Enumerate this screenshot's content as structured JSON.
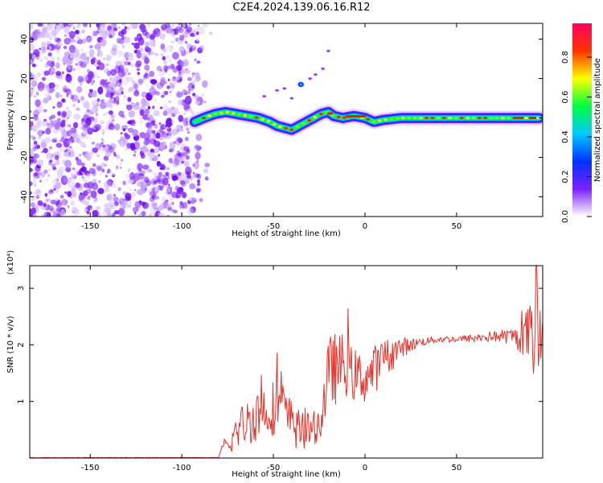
{
  "title": "C2E4.2024.139.06.16.R12",
  "colors": {
    "trace": "#e8302a",
    "scatter": "#7d1fff",
    "axis": "#000000"
  },
  "chart_data": [
    {
      "id": "spectrogram",
      "type": "heatmap",
      "title": "C2E4.2024.139.06.16.R12",
      "xlabel": "Height of straight line (km)",
      "ylabel": "Frequency (Hz)",
      "xlim": [
        -183,
        97
      ],
      "ylim": [
        -50,
        48
      ],
      "xticks": [
        -150,
        -100,
        -50,
        0,
        50
      ],
      "yticks": [
        -40,
        -20,
        0,
        20,
        40
      ],
      "colorbar": {
        "label": "Normalized spectral amplitude",
        "range": [
          0,
          0.97
        ],
        "ticks": [
          0.0,
          0.2,
          0.4,
          0.6,
          0.8
        ],
        "colormap": [
          "#ffffff",
          "#7d1fff",
          "#0033ff",
          "#00c8ff",
          "#00ff40",
          "#ffff00",
          "#ff3300",
          "#ff0060"
        ]
      },
      "noise_region_km": [
        -183,
        -88
      ],
      "carrier_trace": {
        "x": [
          -93,
          -88,
          -82,
          -76,
          -70,
          -64,
          -58,
          -52,
          -48,
          -44,
          -40,
          -36,
          -32,
          -28,
          -24,
          -20,
          -17,
          -12,
          -6,
          0,
          5,
          10,
          20,
          30,
          40,
          50,
          60,
          70,
          80,
          90,
          95
        ],
        "y": [
          -2,
          0,
          2,
          3,
          2,
          1,
          0,
          -2,
          -4,
          -5,
          -6,
          -4,
          -2,
          0,
          2,
          3,
          1,
          0,
          1,
          0,
          -2,
          -1,
          0,
          0,
          0,
          0,
          0,
          0,
          0,
          0,
          0
        ]
      },
      "sideband_points": {
        "x": [
          -55,
          -48,
          -44,
          -40,
          -35,
          -30,
          -27,
          -23,
          -20
        ],
        "y": [
          11,
          14,
          15,
          10,
          17,
          20,
          22,
          25,
          34
        ]
      }
    },
    {
      "id": "snr",
      "type": "line",
      "xlabel": "Height of straight line (km)",
      "ylabel": "SNR (10 * v/v)",
      "yscale_label": "(x10⁴)",
      "xlim": [
        -183,
        97
      ],
      "ylim": [
        0,
        3.4
      ],
      "xticks": [
        -150,
        -100,
        -50,
        0,
        50
      ],
      "yticks": [
        1,
        2,
        3
      ],
      "series": [
        {
          "name": "SNR",
          "x": [
            -183,
            -80,
            -77,
            -74,
            -70,
            -66,
            -62,
            -58,
            -54,
            -50,
            -46,
            -42,
            -38,
            -34,
            -30,
            -27,
            -24,
            -21,
            -18,
            -15,
            -12,
            -8,
            -4,
            0,
            5,
            10,
            15,
            20,
            25,
            30,
            40,
            50,
            60,
            70,
            80,
            85,
            90,
            93,
            95,
            97
          ],
          "envelope": [
            0.0,
            0.0,
            0.25,
            0.2,
            0.5,
            0.6,
            0.7,
            0.8,
            0.85,
            0.9,
            0.95,
            0.7,
            0.55,
            0.45,
            0.5,
            0.55,
            0.65,
            1.3,
            1.6,
            1.55,
            1.7,
            1.5,
            1.45,
            1.4,
            1.55,
            1.75,
            1.85,
            1.95,
            2.0,
            2.05,
            2.1,
            2.1,
            2.12,
            2.15,
            2.15,
            2.1,
            2.2,
            2.05,
            2.1,
            2.2
          ],
          "spread": [
            0.0,
            0.0,
            0.1,
            0.15,
            0.35,
            0.4,
            0.45,
            0.5,
            0.5,
            0.5,
            0.5,
            0.45,
            0.4,
            0.35,
            0.3,
            0.3,
            0.35,
            0.6,
            0.7,
            0.6,
            0.55,
            0.5,
            0.45,
            0.45,
            0.45,
            0.35,
            0.3,
            0.2,
            0.12,
            0.08,
            0.06,
            0.06,
            0.08,
            0.1,
            0.15,
            0.25,
            0.6,
            0.9,
            0.5,
            0.3
          ]
        }
      ]
    }
  ]
}
